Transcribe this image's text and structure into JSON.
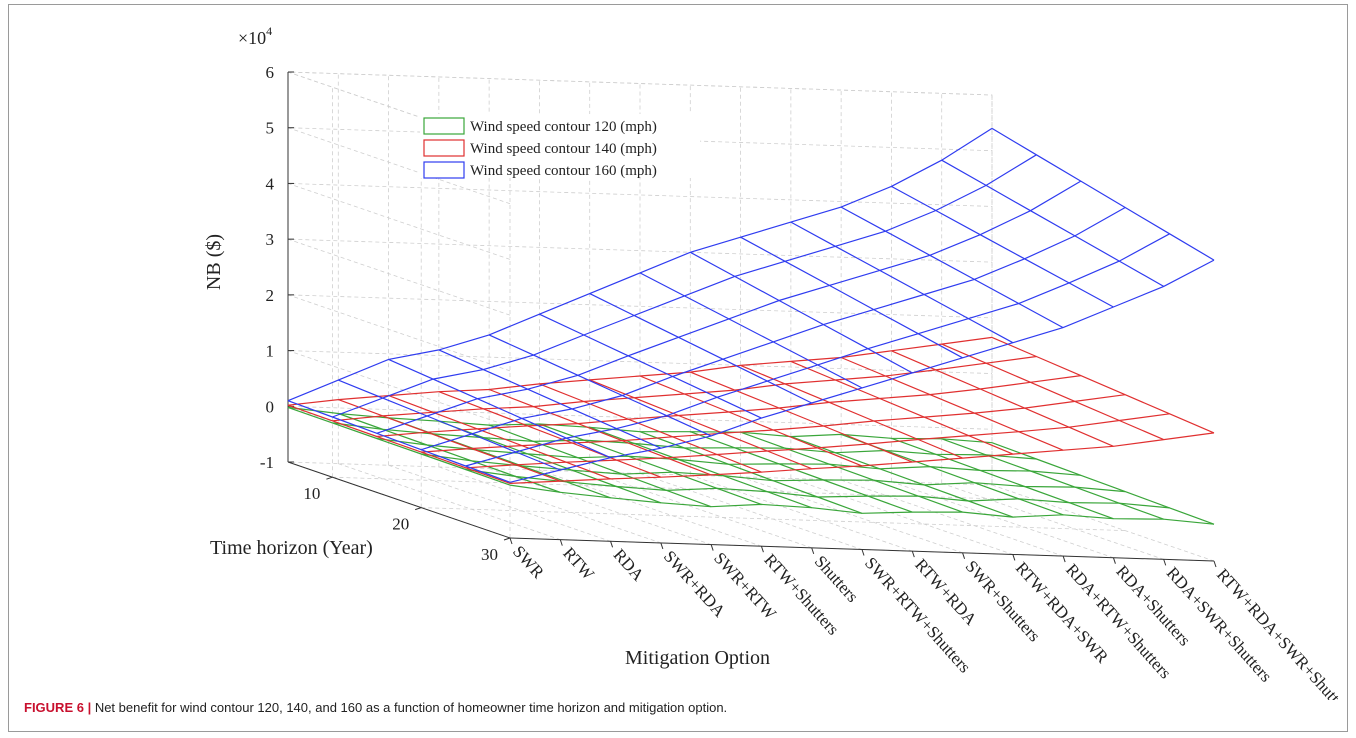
{
  "figure": {
    "label": "FIGURE 6 |",
    "caption": " Net benefit for wind contour 120, 140, and 160 as a function of homeowner time horizon and mitigation option."
  },
  "chart_data": {
    "type": "surface-mesh-3d",
    "title": "",
    "zlabel": "NB ($)",
    "z_multiplier_label": "×10",
    "z_multiplier_exponent": "4",
    "xlabel": "Mitigation Option",
    "ylabel": "Time horizon (Year)",
    "zlim": [
      -1,
      6
    ],
    "z_ticks": [
      "6",
      "5",
      "4",
      "3",
      "2",
      "1",
      "0",
      "-1"
    ],
    "z_tick_values": [
      6,
      5,
      4,
      3,
      2,
      1,
      0,
      -1
    ],
    "y_ticks": [
      "10",
      "20",
      "30"
    ],
    "y_tick_values": [
      10,
      20,
      30
    ],
    "x_categories": [
      "SWR",
      "RTW",
      "RDA",
      "SWR+RDA",
      "SWR+RTW",
      "RTW+Shutters",
      "Shutters",
      "SWR+RTW+Shutters",
      "RTW+RDA",
      "SWR+Shutters",
      "RTW+RDA+SWR",
      "RDA+RTW+Shutters",
      "RDA+Shutters",
      "RDA+SWR+Shutters",
      "RTW+RDA+SWR+Shutters"
    ],
    "grid": true,
    "legend_position": "top-left",
    "series": [
      {
        "name": "Wind speed contour 120 (mph)",
        "color": "#3aa63a",
        "values_near_year_y": [
          -0.02,
          -0.1,
          -0.15,
          -0.18,
          -0.22,
          -0.17,
          -0.2,
          -0.25,
          -0.22,
          -0.2,
          -0.25,
          -0.18,
          -0.22,
          -0.2,
          -0.24
        ],
        "values_far_year_y": [
          -0.05,
          -0.15,
          -0.22,
          -0.28,
          -0.32,
          -0.25,
          -0.28,
          -0.35,
          -0.3,
          -0.27,
          -0.33,
          -0.26,
          -0.3,
          -0.28,
          -0.34
        ]
      },
      {
        "name": "Wind speed contour 140 (mph)",
        "color": "#e03030",
        "values_near_year_y": [
          0.02,
          0.15,
          0.25,
          0.35,
          0.42,
          0.55,
          0.65,
          0.75,
          0.85,
          1.0,
          1.1,
          1.2,
          1.35,
          1.5,
          1.65
        ],
        "values_far_year_y": [
          -0.02,
          0.05,
          0.12,
          0.18,
          0.25,
          0.33,
          0.42,
          0.5,
          0.6,
          0.7,
          0.8,
          0.9,
          1.0,
          1.15,
          1.3
        ]
      },
      {
        "name": "Wind speed contour 160 (mph)",
        "color": "#2f3cf0",
        "values_near_year_y": [
          0.1,
          0.5,
          0.9,
          1.1,
          1.4,
          1.8,
          2.2,
          2.6,
          3.0,
          3.3,
          3.6,
          3.9,
          4.3,
          4.8,
          5.4
        ],
        "values_far_year_y": [
          0.0,
          0.25,
          0.5,
          0.7,
          0.95,
          1.3,
          1.6,
          1.9,
          2.2,
          2.5,
          2.8,
          3.1,
          3.5,
          3.9,
          4.4
        ]
      }
    ]
  }
}
